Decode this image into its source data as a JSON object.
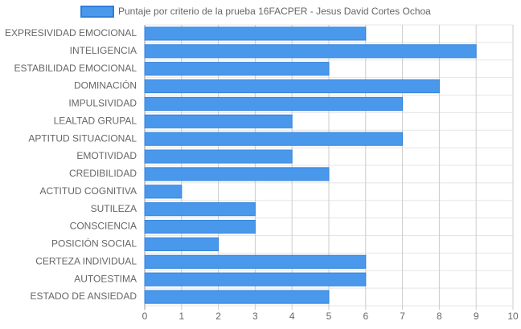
{
  "chart_data": {
    "type": "bar",
    "orientation": "horizontal",
    "categories": [
      "EXPRESIVIDAD EMOCIONAL",
      "INTELIGENCIA",
      "ESTABILIDAD EMOCIONAL",
      "DOMINACIÓN",
      "IMPULSIVIDAD",
      "LEALTAD GRUPAL",
      "APTITUD SITUACIONAL",
      "EMOTIVIDAD",
      "CREDIBILIDAD",
      "ACTITUD COGNITIVA",
      "SUTILEZA",
      "CONSCIENCIA",
      "POSICIÓN SOCIAL",
      "CERTEZA INDIVIDUAL",
      "AUTOESTIMA",
      "ESTADO DE ANSIEDAD"
    ],
    "series": [
      {
        "name": "Puntaje por criterio de la prueba 16FACPER - Jesus David Cortes Ochoa",
        "color": "#4a98eb",
        "values": [
          6,
          9,
          5,
          8,
          7,
          4,
          7,
          4,
          5,
          1,
          3,
          3,
          2,
          6,
          6,
          5
        ]
      }
    ],
    "xlim": [
      0,
      10
    ],
    "xticks": [
      0,
      1,
      2,
      3,
      4,
      5,
      6,
      7,
      8,
      9,
      10
    ],
    "grid": true
  }
}
